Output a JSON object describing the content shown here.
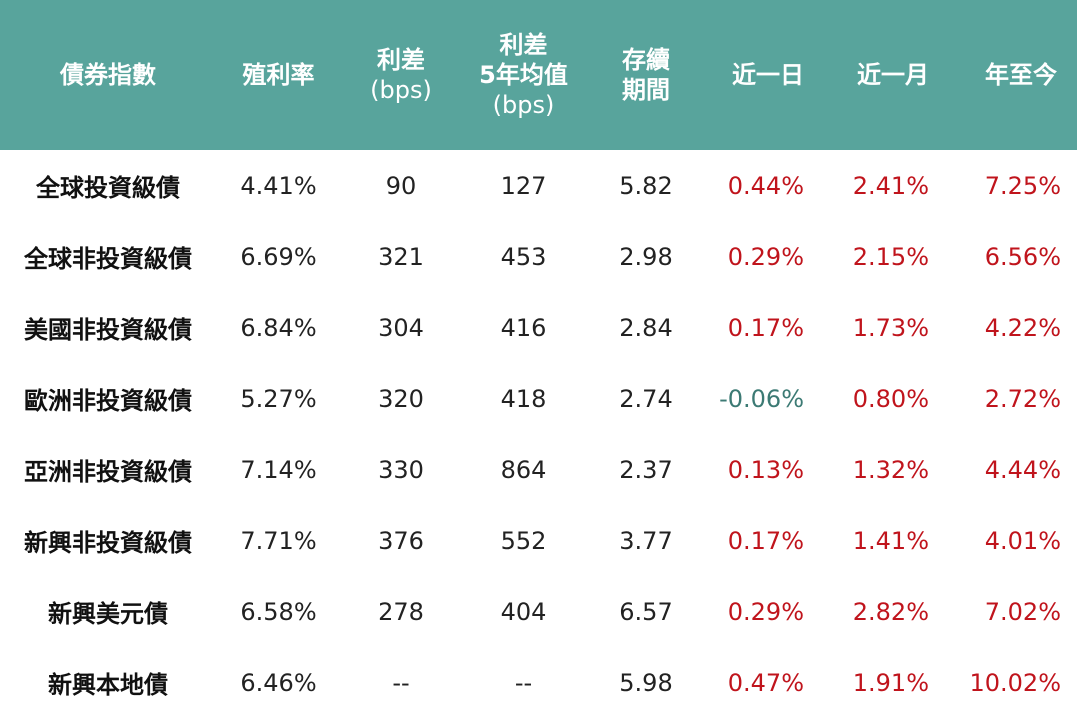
{
  "colors": {
    "header_bg": "#58a49c",
    "header_text": "#ffffff",
    "positive": "#c0141c",
    "negative": "#3c7a74",
    "text": "#222222"
  },
  "headers": {
    "index": "債券指數",
    "yield": "殖利率",
    "spread_line1": "利差",
    "spread_line2": "(bps)",
    "spread5y_line1": "利差",
    "spread5y_line2": "5年均值",
    "spread5y_line3": "(bps)",
    "duration_line1": "存續",
    "duration_line2": "期間",
    "d1": "近一日",
    "m1": "近一月",
    "ytd": "年至今"
  },
  "rows": [
    {
      "name": "全球投資級債",
      "yield": "4.41%",
      "spread": "90",
      "spread5y": "127",
      "duration": "5.82",
      "d1": "0.44%",
      "m1": "2.41%",
      "ytd": "7.25%",
      "d1_sign": "pos"
    },
    {
      "name": "全球非投資級債",
      "yield": "6.69%",
      "spread": "321",
      "spread5y": "453",
      "duration": "2.98",
      "d1": "0.29%",
      "m1": "2.15%",
      "ytd": "6.56%",
      "d1_sign": "pos"
    },
    {
      "name": "美國非投資級債",
      "yield": "6.84%",
      "spread": "304",
      "spread5y": "416",
      "duration": "2.84",
      "d1": "0.17%",
      "m1": "1.73%",
      "ytd": "4.22%",
      "d1_sign": "pos"
    },
    {
      "name": "歐洲非投資級債",
      "yield": "5.27%",
      "spread": "320",
      "spread5y": "418",
      "duration": "2.74",
      "d1": "-0.06%",
      "m1": "0.80%",
      "ytd": "2.72%",
      "d1_sign": "neg"
    },
    {
      "name": "亞洲非投資級債",
      "yield": "7.14%",
      "spread": "330",
      "spread5y": "864",
      "duration": "2.37",
      "d1": "0.13%",
      "m1": "1.32%",
      "ytd": "4.44%",
      "d1_sign": "pos"
    },
    {
      "name": "新興非投資級債",
      "yield": "7.71%",
      "spread": "376",
      "spread5y": "552",
      "duration": "3.77",
      "d1": "0.17%",
      "m1": "1.41%",
      "ytd": "4.01%",
      "d1_sign": "pos"
    },
    {
      "name": "新興美元債",
      "yield": "6.58%",
      "spread": "278",
      "spread5y": "404",
      "duration": "6.57",
      "d1": "0.29%",
      "m1": "2.82%",
      "ytd": "7.02%",
      "d1_sign": "pos"
    },
    {
      "name": "新興本地債",
      "yield": "6.46%",
      "spread": "--",
      "spread5y": "--",
      "duration": "5.98",
      "d1": "0.47%",
      "m1": "1.91%",
      "ytd": "10.02%",
      "d1_sign": "pos"
    }
  ]
}
